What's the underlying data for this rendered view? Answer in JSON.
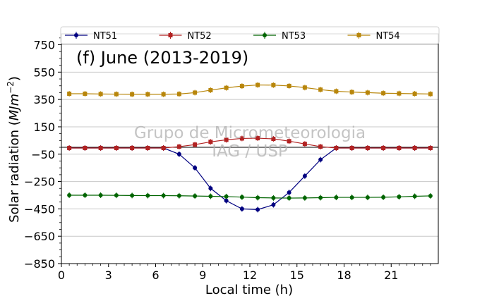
{
  "chart_data": {
    "type": "line",
    "panel_label": "(f) June (2013-2019)",
    "xlabel": "Local time (h)",
    "ylabel": "Solar radiation (",
    "ylabel_unit_base": "MJm",
    "ylabel_unit_exp": "−2",
    "ylabel_close": ")",
    "xlim": [
      0,
      24
    ],
    "ylim": [
      -850,
      830
    ],
    "xticks": [
      0,
      3,
      6,
      9,
      12,
      15,
      18,
      21
    ],
    "yticks": [
      -850,
      -650,
      -450,
      -250,
      -50,
      150,
      350,
      550,
      750
    ],
    "tick_labels_x": [
      "0",
      "3",
      "6",
      "9",
      "12",
      "15",
      "18",
      "21"
    ],
    "tick_labels_y": [
      "−850",
      "−650",
      "−450",
      "−250",
      "−50",
      "150",
      "350",
      "550",
      "750"
    ],
    "grid": "horizontal",
    "zero_line": true,
    "legend_position": "top",
    "watermark_line1": "Grupo de Micrometeorologia",
    "watermark_line2": "IAG / USP",
    "x": [
      0.5,
      1.5,
      2.5,
      3.5,
      4.5,
      5.5,
      6.5,
      7.5,
      8.5,
      9.5,
      10.5,
      11.5,
      12.5,
      13.5,
      14.5,
      15.5,
      16.5,
      17.5,
      18.5,
      19.5,
      20.5,
      21.5,
      22.5,
      23.5
    ],
    "series": [
      {
        "name": "NT51",
        "color": "#000080",
        "marker": "circle",
        "values": [
          -5,
          -5,
          -5,
          -5,
          -5,
          -5,
          -5,
          -50,
          -150,
          -300,
          -390,
          -450,
          -455,
          -420,
          -330,
          -210,
          -90,
          -5,
          -5,
          -5,
          -5,
          -5,
          -5,
          -5
        ]
      },
      {
        "name": "NT52",
        "color": "#b22222",
        "marker": "square",
        "values": [
          -5,
          -5,
          -5,
          -5,
          -5,
          -5,
          -5,
          5,
          20,
          40,
          55,
          65,
          67,
          62,
          45,
          25,
          5,
          -5,
          -5,
          -5,
          -5,
          -5,
          -5,
          -5
        ]
      },
      {
        "name": "NT53",
        "color": "#006400",
        "marker": "circle",
        "values": [
          -350,
          -350,
          -350,
          -351,
          -352,
          -353,
          -353,
          -354,
          -356,
          -358,
          -360,
          -364,
          -368,
          -370,
          -371,
          -370,
          -368,
          -366,
          -366,
          -366,
          -365,
          -362,
          -358,
          -355
        ]
      },
      {
        "name": "NT54",
        "color": "#b8860b",
        "marker": "square",
        "values": [
          392,
          392,
          390,
          389,
          388,
          388,
          388,
          390,
          400,
          418,
          435,
          448,
          456,
          455,
          449,
          437,
          422,
          410,
          404,
          400,
          396,
          394,
          392,
          390
        ]
      }
    ]
  }
}
